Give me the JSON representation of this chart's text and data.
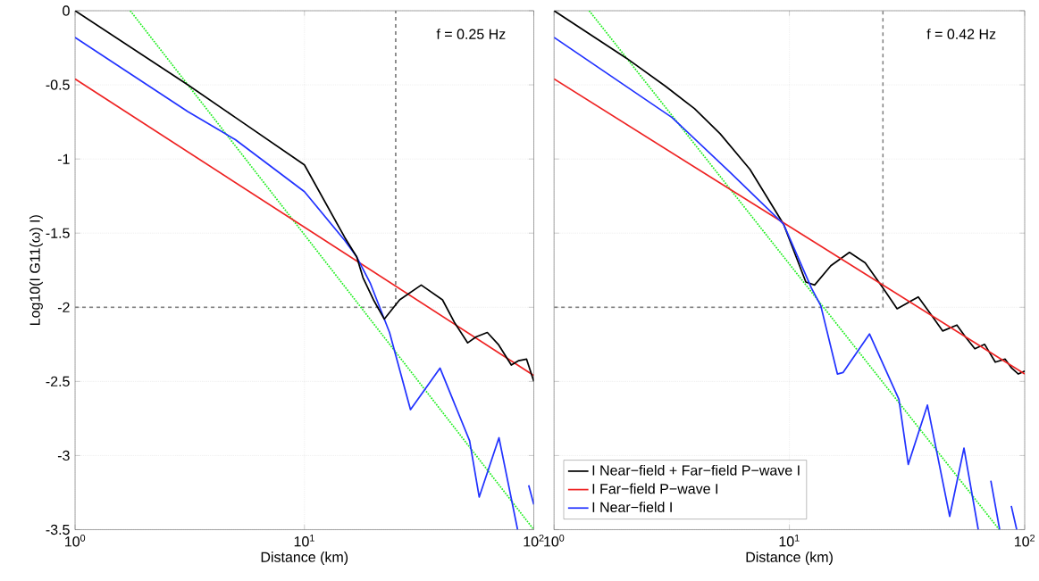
{
  "chart_data": [
    {
      "type": "line",
      "xlabel": "Distance (km)",
      "ylabel": "Log10(I G11(ω) I)",
      "log": "x",
      "grid": true,
      "legend": false,
      "xlim": [
        1,
        100
      ],
      "ylim": [
        -3.5,
        0
      ],
      "xticks": [
        {
          "value": 1,
          "label": "10$^{0}$"
        },
        {
          "value": 10,
          "label": "10$^{1}$"
        },
        {
          "value": 100,
          "label": "10$^{2}$"
        }
      ],
      "yticks": [
        -3.5,
        -3,
        -2.5,
        -2,
        -1.5,
        -1,
        -0.5,
        0
      ],
      "annotations": [
        "f = 0.25 Hz"
      ],
      "series": [
        {
          "type": "line",
          "line_style": "dashed",
          "color": "#808080",
          "x": [
            1,
            25,
            25
          ],
          "values": [
            -2,
            -2,
            0
          ]
        },
        {
          "type": "line",
          "line_style": "dotted",
          "color": "#22ee22",
          "x": [
            1.74,
            100
          ],
          "values": [
            0,
            -3.5
          ]
        },
        {
          "type": "line",
          "line_style": "solid",
          "color": "#ee2222",
          "x": [
            1,
            100
          ],
          "values": [
            -0.46,
            -2.46
          ]
        },
        {
          "type": "line",
          "line_style": "solid",
          "color": "#2233ff",
          "x": [
            1,
            3.1,
            5,
            10,
            15,
            16.9,
            19.4,
            23.5,
            29,
            39,
            52.5,
            57.8,
            70.5,
            85,
            91.5,
            95,
            100
          ],
          "values": [
            -0.18,
            -0.68,
            -0.87,
            -1.22,
            -1.55,
            -1.66,
            -1.84,
            -2.17,
            -2.69,
            -2.41,
            -2.9,
            -3.28,
            -2.88,
            -3.5,
            null,
            -3.2,
            -3.33
          ]
        },
        {
          "type": "line",
          "line_style": "solid",
          "color": "#000000",
          "x": [
            1,
            3.1,
            5,
            10,
            15,
            16.9,
            18,
            20,
            22.3,
            26,
            32.3,
            40,
            45,
            51.5,
            56,
            62.7,
            70,
            79.8,
            86,
            93,
            100
          ],
          "values": [
            0,
            -0.5,
            -0.72,
            -1.04,
            -1.53,
            -1.66,
            -1.8,
            -1.95,
            -2.08,
            -1.95,
            -1.85,
            -1.95,
            -2.1,
            -2.24,
            -2.2,
            -2.17,
            -2.25,
            -2.39,
            -2.36,
            -2.35,
            -2.5
          ]
        }
      ]
    },
    {
      "type": "line",
      "xlabel": "Distance (km)",
      "log": "x",
      "grid": true,
      "legend": "bottom left",
      "tick_labels": "x",
      "xlim": [
        1,
        100
      ],
      "ylim": [
        -3.5,
        0
      ],
      "xticks": [
        {
          "value": 1,
          "label": "10$^{0}$"
        },
        {
          "value": 10,
          "label": "10$^{1}$"
        },
        {
          "value": 100,
          "label": "10$^{2}$"
        }
      ],
      "yticks": [
        -3.5,
        -3,
        -2.5,
        -2,
        -1.5,
        -1,
        -0.5,
        0
      ],
      "annotations": [
        "f = 0.42 Hz"
      ],
      "series": [
        {
          "type": "line",
          "line_style": "dashed",
          "color": "#808080",
          "x": [
            1,
            25,
            25
          ],
          "values": [
            -2,
            -2,
            0
          ]
        },
        {
          "type": "line",
          "line_style": "dotted",
          "color": "#22ee22",
          "x": [
            1.41,
            78
          ],
          "values": [
            0,
            -3.5
          ]
        },
        {
          "name": "I Near−field + Far−field P−wave I",
          "type": "line",
          "line_style": "solid",
          "color": "#000000",
          "x": [
            1,
            2.03,
            2.98,
            3.95,
            5.08,
            6.8,
            9.45,
            11.75,
            12.8,
            15,
            18,
            21,
            25,
            28.7,
            35.3,
            40,
            44.8,
            51.5,
            56,
            61.4,
            67.6,
            75,
            82.6,
            88,
            94,
            100
          ],
          "values": [
            0,
            -0.32,
            -0.51,
            -0.66,
            -0.83,
            -1.07,
            -1.44,
            -1.83,
            -1.85,
            -1.72,
            -1.63,
            -1.7,
            -1.87,
            -2.01,
            -1.93,
            -2.05,
            -2.16,
            -2.12,
            -2.2,
            -2.28,
            -2.25,
            -2.37,
            -2.35,
            -2.41,
            -2.45,
            -2.43
          ]
        },
        {
          "name": "I Far−field P−wave I",
          "type": "line",
          "line_style": "solid",
          "color": "#ee2222",
          "x": [
            1,
            100
          ],
          "values": [
            -0.46,
            -2.45
          ]
        },
        {
          "name": "I Near−field I",
          "type": "line",
          "line_style": "solid",
          "color": "#2233ff",
          "x": [
            1,
            3.17,
            5.6,
            9.45,
            12.4,
            13.6,
            16,
            16.9,
            21.9,
            29.2,
            32,
            38.6,
            48,
            55.2,
            63.5,
            65.2,
            71.8,
            78.3,
            84,
            87.7,
            92.5
          ],
          "values": [
            -0.18,
            -0.72,
            -1.09,
            -1.44,
            -1.87,
            -1.99,
            -2.45,
            -2.44,
            -2.18,
            -2.62,
            -3.06,
            -2.66,
            -3.41,
            -2.95,
            -3.5,
            null,
            -3.17,
            -3.5,
            null,
            -3.34,
            -3.5
          ]
        }
      ]
    }
  ]
}
